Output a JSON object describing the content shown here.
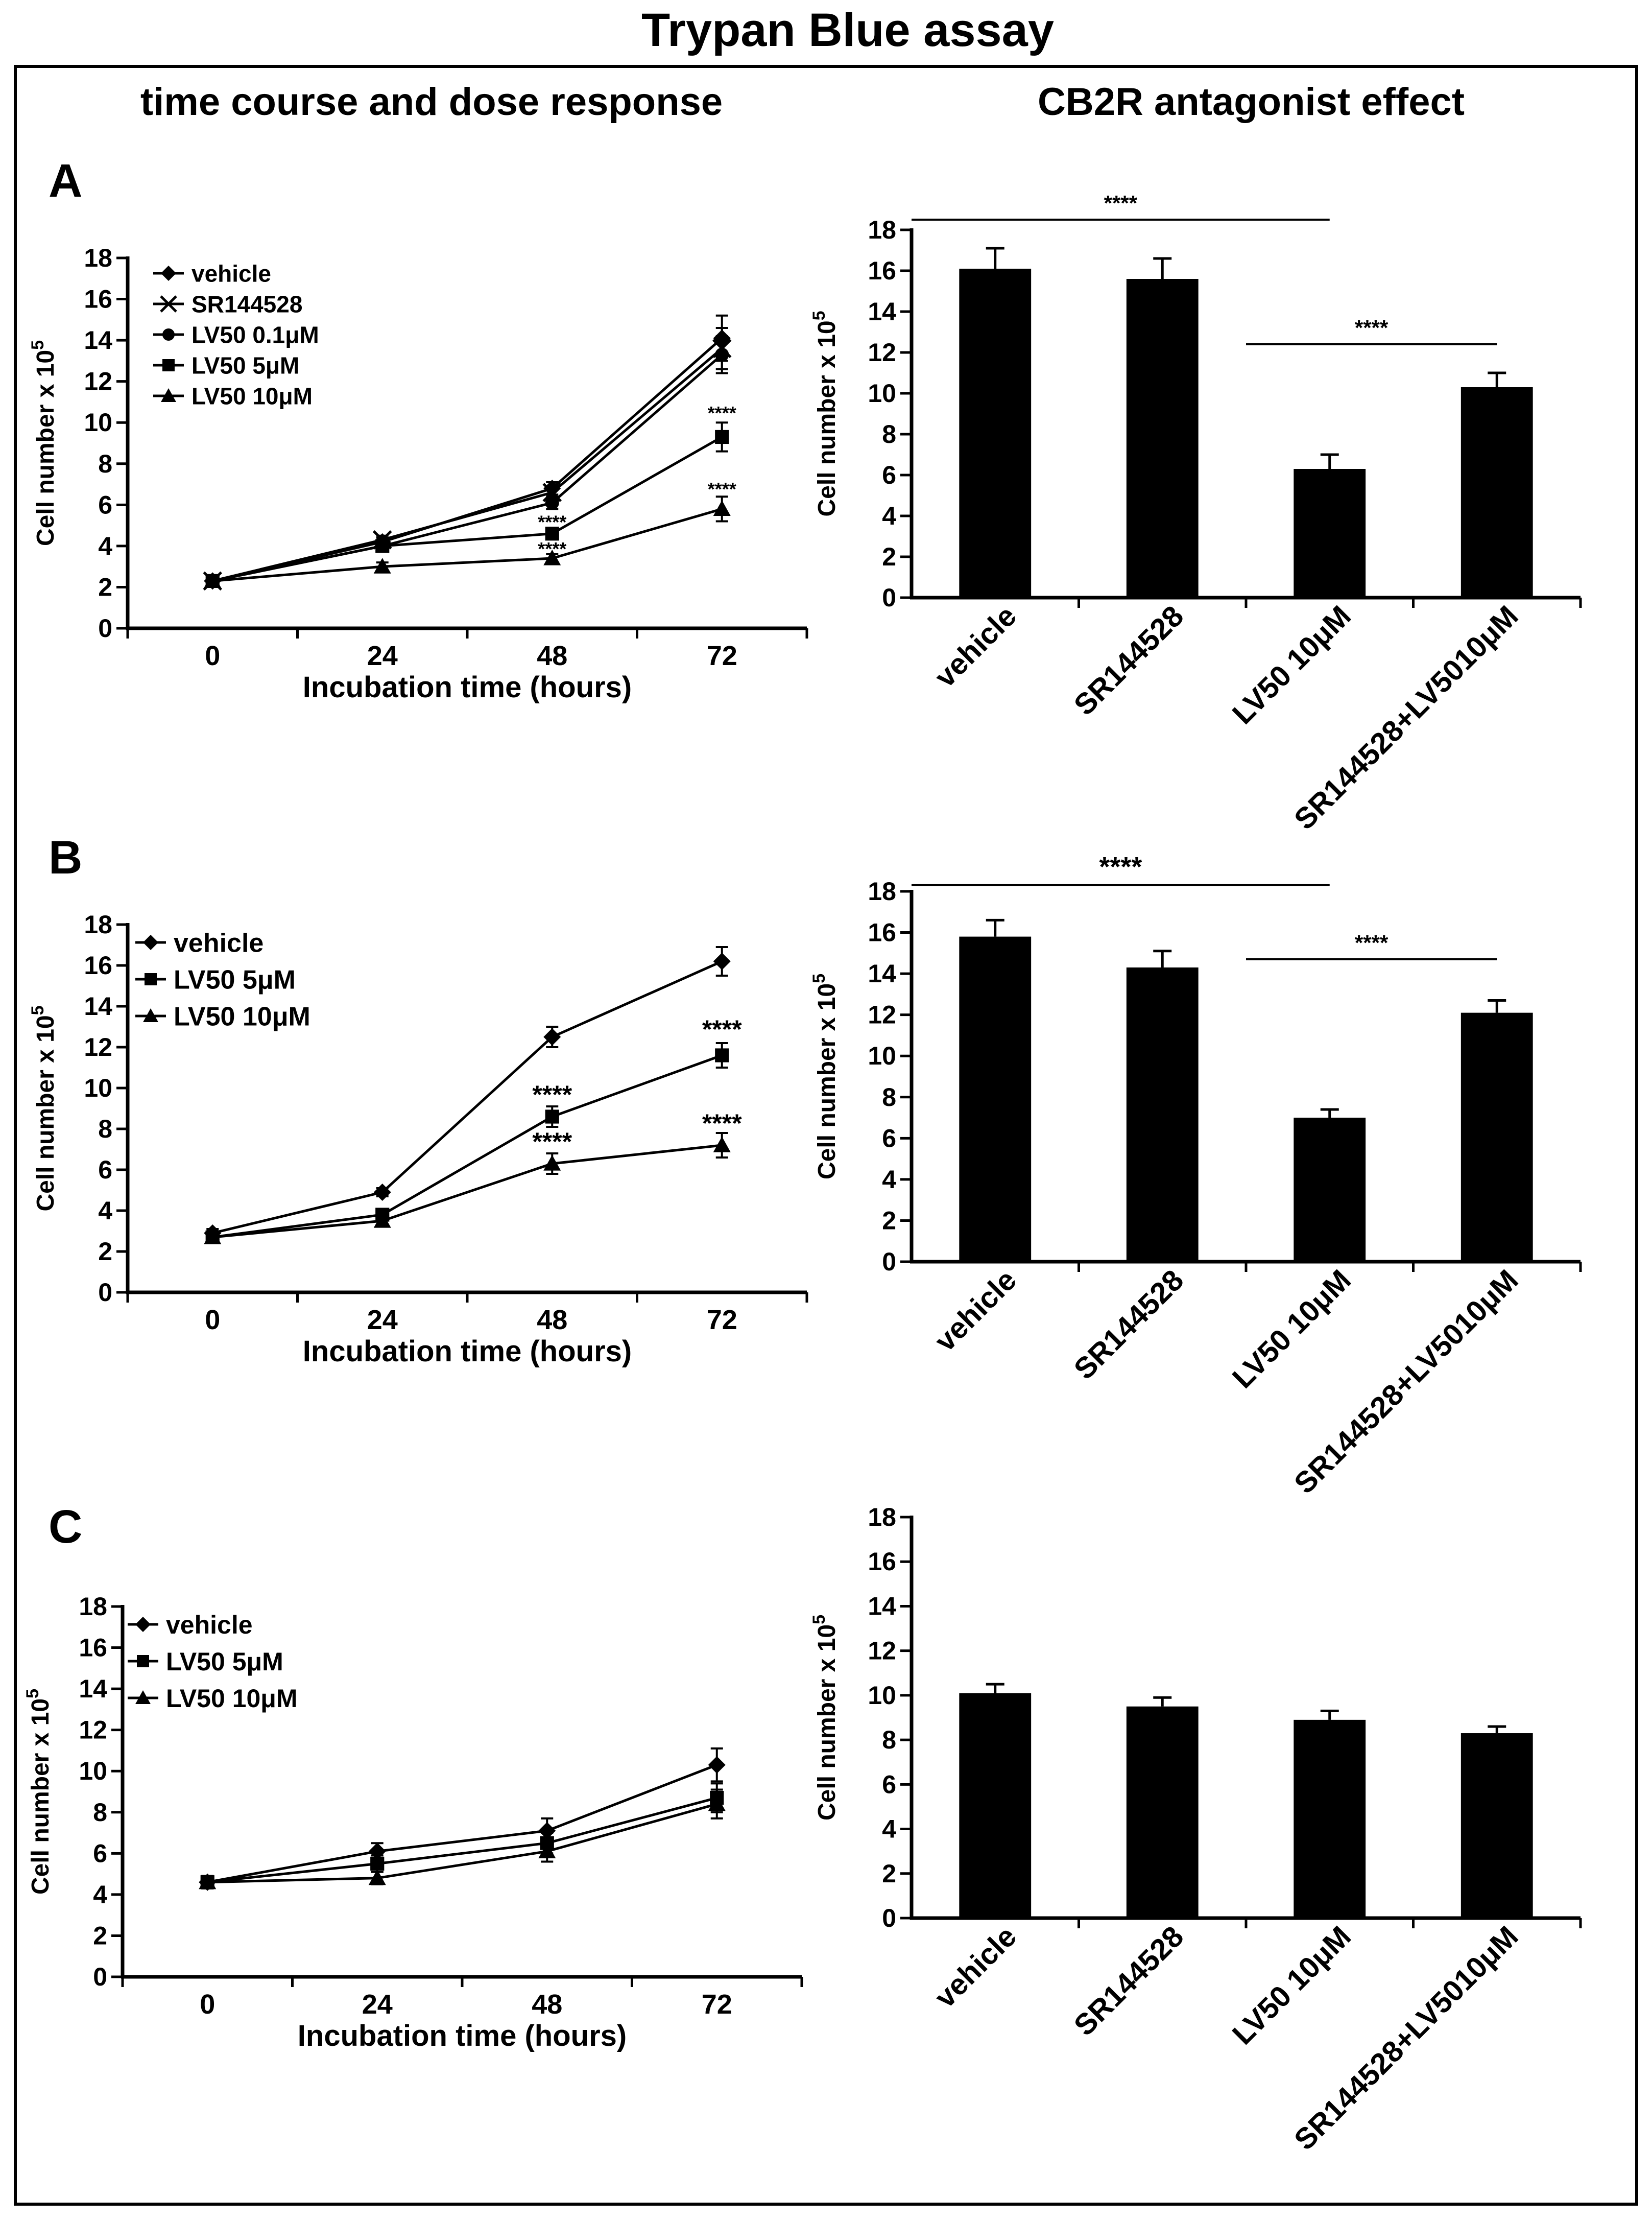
{
  "figure": {
    "title": "Trypan Blue assay",
    "left_header": "time course and dose response",
    "right_header": "CB2R antagonist effect"
  },
  "chart_data": [
    {
      "id": "A-line",
      "panel_label": "A",
      "type": "line",
      "xlabel": "Incubation time (hours)",
      "ylabel": "Cell number x 10",
      "ylabel_sup": "5",
      "x": [
        0,
        24,
        48,
        72
      ],
      "ylim": [
        0,
        18
      ],
      "yticks": [
        0,
        2,
        4,
        6,
        8,
        10,
        12,
        14,
        16,
        18
      ],
      "series": [
        {
          "name": "vehicle",
          "marker": "diamond",
          "values": [
            2.3,
            4.2,
            6.8,
            14.1
          ],
          "errors": [
            0.2,
            0.2,
            0.3,
            1.1
          ]
        },
        {
          "name": "SR144528",
          "marker": "x",
          "values": [
            2.3,
            4.3,
            6.6,
            13.6
          ],
          "errors": [
            0.2,
            0.2,
            0.3,
            1.0
          ]
        },
        {
          "name": "LV50 0.1μM",
          "marker": "circle",
          "values": [
            2.3,
            4.0,
            6.1,
            13.3
          ],
          "errors": [
            0.2,
            0.2,
            0.3,
            0.9
          ]
        },
        {
          "name": "LV50 5μM",
          "marker": "square",
          "values": [
            2.3,
            4.0,
            4.6,
            9.3
          ],
          "errors": [
            0.2,
            0.2,
            0.2,
            0.7
          ]
        },
        {
          "name": "LV50 10μM",
          "marker": "triangle",
          "values": [
            2.3,
            3.0,
            3.4,
            5.8
          ],
          "errors": [
            0.2,
            0.2,
            0.2,
            0.6
          ]
        }
      ],
      "annotations": [
        {
          "text": "****",
          "x": 48,
          "y": 5.2
        },
        {
          "text": "****",
          "x": 48,
          "y": 3.9
        },
        {
          "text": "****",
          "x": 72,
          "y": 10.5
        },
        {
          "text": "****",
          "x": 72,
          "y": 6.8
        }
      ]
    },
    {
      "id": "A-bar",
      "type": "bar",
      "ylabel": "Cell number x 10",
      "ylabel_sup": "5",
      "categories": [
        "vehicle",
        "SR144528",
        "LV50 10μM",
        "SR144528+LV5010μM"
      ],
      "values": [
        16.1,
        15.6,
        6.3,
        10.3
      ],
      "errors": [
        1.0,
        1.0,
        0.7,
        0.7
      ],
      "ylim": [
        0,
        18
      ],
      "yticks": [
        0,
        2,
        4,
        6,
        8,
        10,
        12,
        14,
        16,
        18
      ],
      "significance": [
        {
          "text": "****",
          "from": 0,
          "to": 2,
          "y": 18.5
        },
        {
          "text": "****",
          "from": 2,
          "to": 3,
          "y": 12.4
        }
      ]
    },
    {
      "id": "B-line",
      "panel_label": "B",
      "type": "line",
      "xlabel": "Incubation time (hours)",
      "ylabel": "Cell number x 10",
      "ylabel_sup": "5",
      "x": [
        0,
        24,
        48,
        72
      ],
      "ylim": [
        0,
        18
      ],
      "yticks": [
        0,
        2,
        4,
        6,
        8,
        10,
        12,
        14,
        16,
        18
      ],
      "series": [
        {
          "name": "vehicle",
          "marker": "diamond",
          "values": [
            2.9,
            4.9,
            12.5,
            16.2
          ],
          "errors": [
            0.2,
            0.2,
            0.5,
            0.7
          ]
        },
        {
          "name": "LV50 5μM",
          "marker": "square",
          "values": [
            2.7,
            3.8,
            8.6,
            11.6
          ],
          "errors": [
            0.2,
            0.2,
            0.5,
            0.6
          ]
        },
        {
          "name": "LV50 10μM",
          "marker": "triangle",
          "values": [
            2.7,
            3.5,
            6.3,
            7.2
          ],
          "errors": [
            0.2,
            0.2,
            0.5,
            0.6
          ]
        }
      ],
      "annotations": [
        {
          "text": "****",
          "x": 48,
          "y": 9.6
        },
        {
          "text": "****",
          "x": 48,
          "y": 7.3
        },
        {
          "text": "****",
          "x": 72,
          "y": 12.8
        },
        {
          "text": "****",
          "x": 72,
          "y": 8.2
        }
      ]
    },
    {
      "id": "B-bar",
      "type": "bar",
      "ylabel": "Cell number x 10",
      "ylabel_sup": "5",
      "categories": [
        "vehicle",
        "SR144528",
        "LV50 10μM",
        "SR144528+LV5010μM"
      ],
      "values": [
        15.8,
        14.3,
        7.0,
        12.1
      ],
      "errors": [
        0.8,
        0.8,
        0.4,
        0.6
      ],
      "ylim": [
        0,
        18
      ],
      "yticks": [
        0,
        2,
        4,
        6,
        8,
        10,
        12,
        14,
        16,
        18
      ],
      "significance": [
        {
          "text": "****",
          "from": 0,
          "to": 2,
          "y": 18.3
        },
        {
          "text": "****",
          "from": 2,
          "to": 3,
          "y": 14.7
        }
      ]
    },
    {
      "id": "C-line",
      "panel_label": "C",
      "type": "line",
      "xlabel": "Incubation time (hours)",
      "ylabel": "Cell number x 10",
      "ylabel_sup": "5",
      "x": [
        0,
        24,
        48,
        72
      ],
      "ylim": [
        0,
        18
      ],
      "yticks": [
        0,
        2,
        4,
        6,
        8,
        10,
        12,
        14,
        16,
        18
      ],
      "series": [
        {
          "name": "vehicle",
          "marker": "diamond",
          "values": [
            4.6,
            6.1,
            7.1,
            10.3
          ],
          "errors": [
            0.3,
            0.4,
            0.6,
            0.8
          ]
        },
        {
          "name": "LV50 5μM",
          "marker": "square",
          "values": [
            4.6,
            5.5,
            6.5,
            8.7
          ],
          "errors": [
            0.3,
            0.4,
            0.5,
            0.7
          ]
        },
        {
          "name": "LV50 10μM",
          "marker": "triangle",
          "values": [
            4.6,
            4.8,
            6.1,
            8.4
          ],
          "errors": [
            0.3,
            0.3,
            0.5,
            0.7
          ]
        }
      ],
      "annotations": []
    },
    {
      "id": "C-bar",
      "type": "bar",
      "ylabel": "Cell number x 10",
      "ylabel_sup": "5",
      "categories": [
        "vehicle",
        "SR144528",
        "LV50 10μM",
        "SR144528+LV5010μM"
      ],
      "values": [
        10.1,
        9.5,
        8.9,
        8.3
      ],
      "errors": [
        0.4,
        0.4,
        0.4,
        0.3
      ],
      "ylim": [
        0,
        18
      ],
      "yticks": [
        0,
        2,
        4,
        6,
        8,
        10,
        12,
        14,
        16,
        18
      ],
      "significance": []
    }
  ]
}
